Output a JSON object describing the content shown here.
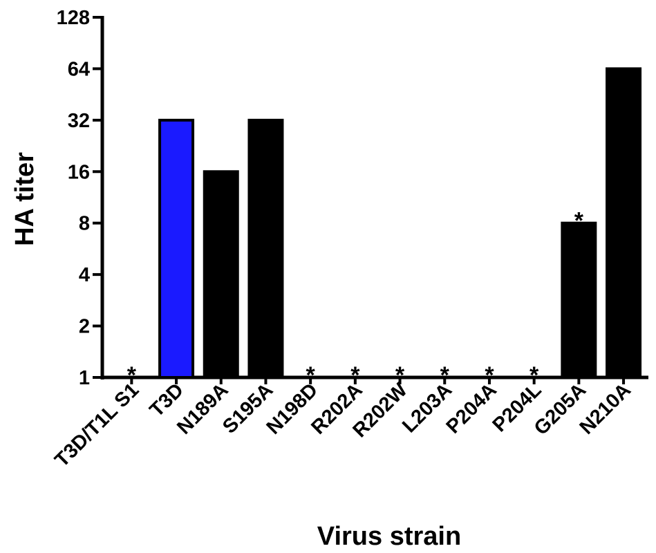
{
  "chart_data": {
    "type": "bar",
    "xlabel": "Virus strain",
    "ylabel": "HA titer",
    "yscale": "log2",
    "ylim": [
      1,
      128
    ],
    "yticks": [
      "1",
      "2",
      "4",
      "8",
      "16",
      "32",
      "64",
      "128"
    ],
    "grid": false,
    "categories": [
      "T3D/T1L S1",
      "T3D",
      "N189A",
      "S195A",
      "N198D",
      "R202A",
      "R202W",
      "L203A",
      "P204A",
      "P204L",
      "G205A",
      "N210A"
    ],
    "values": [
      1,
      32,
      16,
      32,
      1,
      1,
      1,
      1,
      1,
      1,
      8,
      64
    ],
    "significance": [
      "*",
      "",
      "",
      "",
      "*",
      "*",
      "*",
      "*",
      "*",
      "*",
      "*",
      ""
    ],
    "bar_colors": [
      "#000000",
      "#1a1aff",
      "#000000",
      "#000000",
      "#000000",
      "#000000",
      "#000000",
      "#000000",
      "#000000",
      "#000000",
      "#000000",
      "#000000"
    ]
  }
}
